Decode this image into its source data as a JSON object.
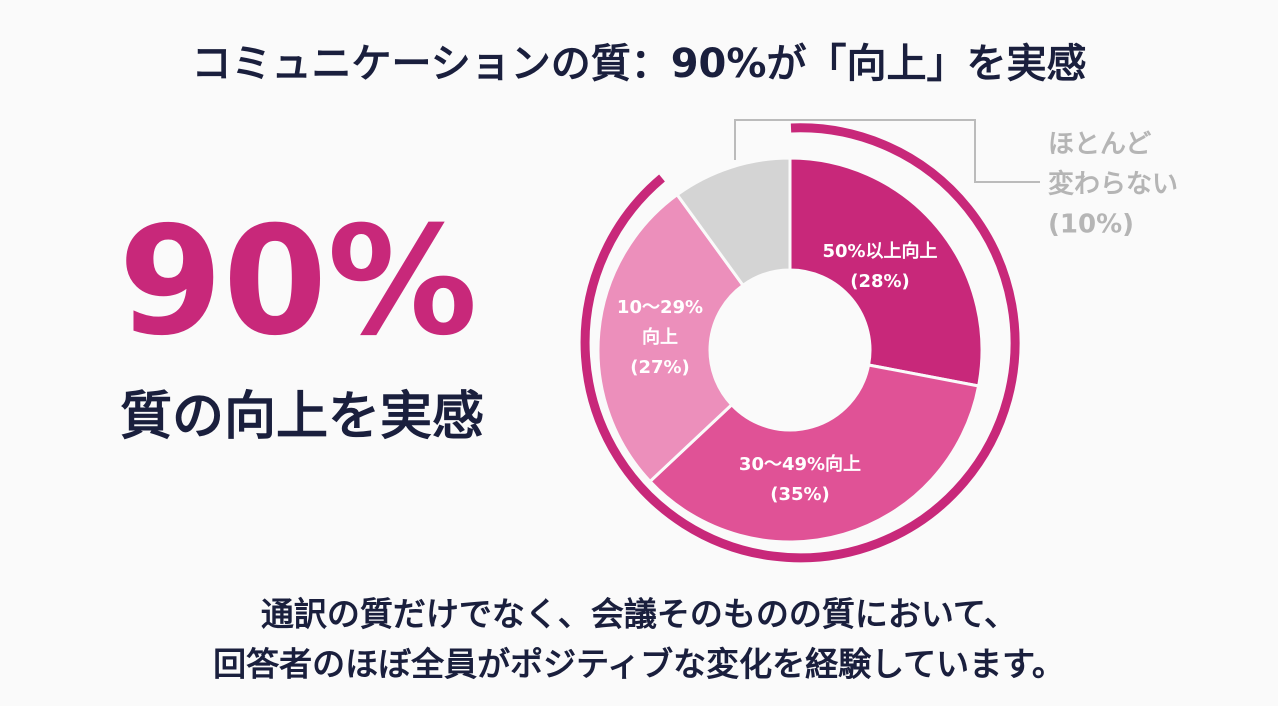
{
  "title": "コミュニケーションの質：90%が「向上」を実感",
  "headline": {
    "figure": "90%",
    "caption": "質の向上を実感"
  },
  "chart_data": {
    "type": "donut",
    "categories": [
      [
        "50%以上向上"
      ],
      [
        "30〜49%向上"
      ],
      [
        "10〜29%",
        "向上"
      ],
      [
        "ほとんど",
        "変わらない"
      ]
    ],
    "values": [
      28,
      35,
      27,
      10
    ],
    "value_labels": [
      "(28%)",
      "(35%)",
      "(27%)",
      "(10%)"
    ],
    "colors": [
      "#c8287a",
      "#e05296",
      "#ec8fbb",
      "#d4d4d4"
    ]
  },
  "footer": [
    "通訳の質だけでなく、会議そのものの質において、",
    "回答者のほぼ全員がポジティブな変化を経験しています。"
  ]
}
